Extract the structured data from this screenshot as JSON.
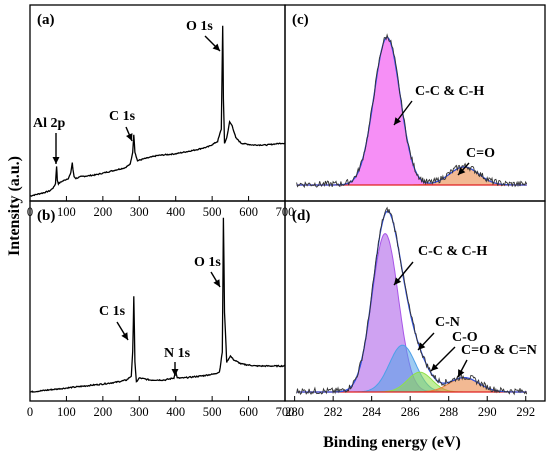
{
  "figure": {
    "ylabel": "Intensity (a.u.)",
    "xlabel": "Binding energy (eV)"
  },
  "chart_data": [
    {
      "panel": "(a)",
      "type": "line",
      "title": "",
      "xlim": [
        0,
        700
      ],
      "xticks": [
        "0",
        "100",
        "200",
        "300",
        "400",
        "500",
        "600",
        "700"
      ],
      "yticks": [],
      "grid": false,
      "annotations": [
        "Al 2p",
        "C 1s",
        "O 1s"
      ],
      "series": [
        {
          "x": [
            0,
            20,
            40,
            55,
            65,
            70,
            73,
            75,
            78,
            85,
            95,
            105,
            112,
            116,
            118,
            121,
            126,
            140,
            180,
            220,
            260,
            275,
            282,
            285,
            288,
            295,
            310,
            350,
            400,
            450,
            490,
            515,
            525,
            529,
            531,
            534,
            540,
            548,
            555,
            565,
            580,
            610,
            650,
            690,
            700
          ],
          "y": [
            0.0,
            0.01,
            0.02,
            0.03,
            0.05,
            0.07,
            0.17,
            0.09,
            0.07,
            0.08,
            0.09,
            0.1,
            0.13,
            0.19,
            0.15,
            0.11,
            0.1,
            0.11,
            0.12,
            0.14,
            0.16,
            0.18,
            0.25,
            0.35,
            0.25,
            0.2,
            0.21,
            0.23,
            0.24,
            0.26,
            0.28,
            0.31,
            0.38,
            0.97,
            0.55,
            0.3,
            0.33,
            0.42,
            0.4,
            0.33,
            0.3,
            0.29,
            0.29,
            0.3,
            0.3
          ]
        }
      ]
    },
    {
      "panel": "(b)",
      "type": "line",
      "title": "",
      "xlim": [
        0,
        700
      ],
      "xticks": [
        "0",
        "100",
        "200",
        "300",
        "400",
        "500",
        "600",
        "700"
      ],
      "yticks": [],
      "grid": false,
      "annotations": [
        "C 1s",
        "N 1s",
        "O 1s"
      ],
      "series": [
        {
          "x": [
            0,
            50,
            100,
            150,
            200,
            240,
            265,
            278,
            282,
            285,
            288,
            292,
            300,
            330,
            370,
            395,
            400,
            404,
            420,
            470,
            505,
            520,
            528,
            531,
            534,
            540,
            550,
            560,
            580,
            620,
            660,
            700
          ],
          "y": [
            0.0,
            0.01,
            0.02,
            0.03,
            0.04,
            0.05,
            0.06,
            0.08,
            0.2,
            0.48,
            0.15,
            0.05,
            0.07,
            0.06,
            0.06,
            0.07,
            0.11,
            0.07,
            0.07,
            0.08,
            0.09,
            0.1,
            0.2,
            0.87,
            0.4,
            0.15,
            0.18,
            0.16,
            0.14,
            0.13,
            0.13,
            0.13
          ]
        }
      ]
    },
    {
      "panel": "(c)",
      "type": "area",
      "title": "",
      "xlim": [
        279.5,
        293
      ],
      "xticks": [],
      "yticks": [],
      "grid": false,
      "annotations": [
        "C-C & C-H",
        "C=O"
      ],
      "series": [
        {
          "name": "C-C & C-H",
          "center": 284.8,
          "amplitude": 0.82,
          "fwhm": 1.6,
          "color": "#ee33ee"
        },
        {
          "name": "C=O",
          "center": 288.8,
          "amplitude": 0.1,
          "fwhm": 1.8,
          "color": "#e8803a"
        }
      ]
    },
    {
      "panel": "(d)",
      "type": "area",
      "title": "",
      "xlim": [
        279.5,
        293
      ],
      "xticks": [
        "280",
        "282",
        "284",
        "286",
        "288",
        "290",
        "292"
      ],
      "yticks": [],
      "grid": false,
      "annotations": [
        "C-C & C-H",
        "C-N",
        "C-O",
        "C=O & C=N"
      ],
      "series": [
        {
          "name": "C-C & C-H",
          "center": 284.7,
          "amplitude": 0.88,
          "fwhm": 1.6,
          "color": "#a855e8"
        },
        {
          "name": "C-N",
          "center": 285.6,
          "amplitude": 0.26,
          "fwhm": 1.6,
          "color": "#4ea0e8"
        },
        {
          "name": "C-O",
          "center": 286.5,
          "amplitude": 0.11,
          "fwhm": 1.5,
          "color": "#8ee04a"
        },
        {
          "name": "C=O & C=N",
          "center": 288.8,
          "amplitude": 0.08,
          "fwhm": 1.8,
          "color": "#e8803a"
        }
      ]
    }
  ]
}
